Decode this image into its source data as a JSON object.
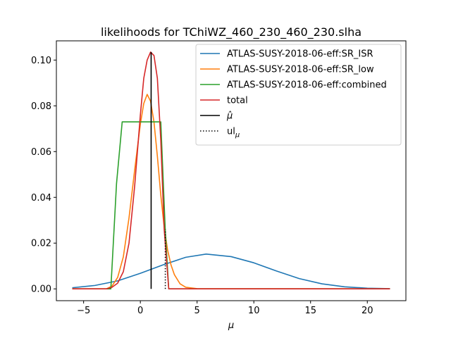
{
  "chart_data": {
    "type": "line",
    "title": "likelihoods for TChiWZ_460_230_460_230.slha",
    "xlabel": "μ",
    "ylabel": "",
    "xlim": [
      -7.4,
      23.4
    ],
    "ylim": [
      -0.00516,
      0.1084
    ],
    "grid": false,
    "legend_position": "top-right",
    "x_ticks": [
      -5,
      0,
      5,
      10,
      15,
      20
    ],
    "x_tick_labels": [
      "−5",
      "0",
      "5",
      "10",
      "15",
      "20"
    ],
    "y_ticks": [
      0.0,
      0.02,
      0.04,
      0.06,
      0.08,
      0.1
    ],
    "y_tick_labels": [
      "0.00",
      "0.02",
      "0.04",
      "0.06",
      "0.08",
      "0.10"
    ],
    "series": [
      {
        "name": "ATLAS-SUSY-2018-06-eff:SR_ISR",
        "color": "#1f77b4",
        "x": [
          -6.0,
          -4.0,
          -2.0,
          0.0,
          2.0,
          4.0,
          5.8,
          8.0,
          10.0,
          12.0,
          14.0,
          16.0,
          18.0,
          20.0,
          22.0
        ],
        "y": [
          0.0005,
          0.0015,
          0.0035,
          0.0068,
          0.0105,
          0.0138,
          0.0152,
          0.0141,
          0.0114,
          0.0078,
          0.0045,
          0.0022,
          0.0009,
          0.0003,
          0.0001
        ]
      },
      {
        "name": "ATLAS-SUSY-2018-06-eff:SR_low",
        "color": "#ff7f0e",
        "x": [
          -6.0,
          -3.0,
          -2.5,
          -2.0,
          -1.5,
          -1.0,
          -0.5,
          0.0,
          0.3,
          0.6,
          0.9,
          1.2,
          1.5,
          1.8,
          2.1,
          2.4,
          2.7,
          3.0,
          3.5,
          4.0,
          5.0,
          22.0
        ],
        "y": [
          0.0,
          0.0,
          0.0012,
          0.005,
          0.014,
          0.031,
          0.052,
          0.072,
          0.081,
          0.085,
          0.082,
          0.073,
          0.058,
          0.041,
          0.027,
          0.017,
          0.0105,
          0.0062,
          0.0022,
          0.0007,
          0.0001,
          0.0
        ]
      },
      {
        "name": "ATLAS-SUSY-2018-06-eff:combined",
        "color": "#2ca02c",
        "x": [
          -6.0,
          -2.6,
          -2.1,
          -1.6,
          1.8,
          2.2,
          2.5,
          22.0
        ],
        "y": [
          0.0,
          0.0,
          0.046,
          0.073,
          0.073,
          0.025,
          0.0,
          0.0
        ]
      },
      {
        "name": "total",
        "color": "#d62728",
        "x": [
          -6.0,
          -3.0,
          -2.5,
          -2.0,
          -1.5,
          -1.0,
          -0.5,
          0.0,
          0.3,
          0.6,
          0.9,
          1.2,
          1.5,
          1.8,
          2.1,
          2.5,
          22.0
        ],
        "y": [
          0.0,
          0.0,
          0.0007,
          0.0025,
          0.0075,
          0.02,
          0.045,
          0.076,
          0.092,
          0.1,
          0.1035,
          0.102,
          0.092,
          0.065,
          0.026,
          0.0,
          0.0
        ]
      }
    ],
    "annotations": [
      {
        "name": "μ̂",
        "kind": "vertical-line",
        "style": "solid",
        "color": "#000000",
        "x": 0.95,
        "y_range": [
          0.0,
          0.1035
        ]
      },
      {
        "name": "ul",
        "name_subscript": "μ",
        "kind": "vertical-line",
        "style": "dotted",
        "color": "#000000",
        "x": 2.2,
        "y_range": [
          0.0,
          0.026
        ]
      }
    ]
  }
}
